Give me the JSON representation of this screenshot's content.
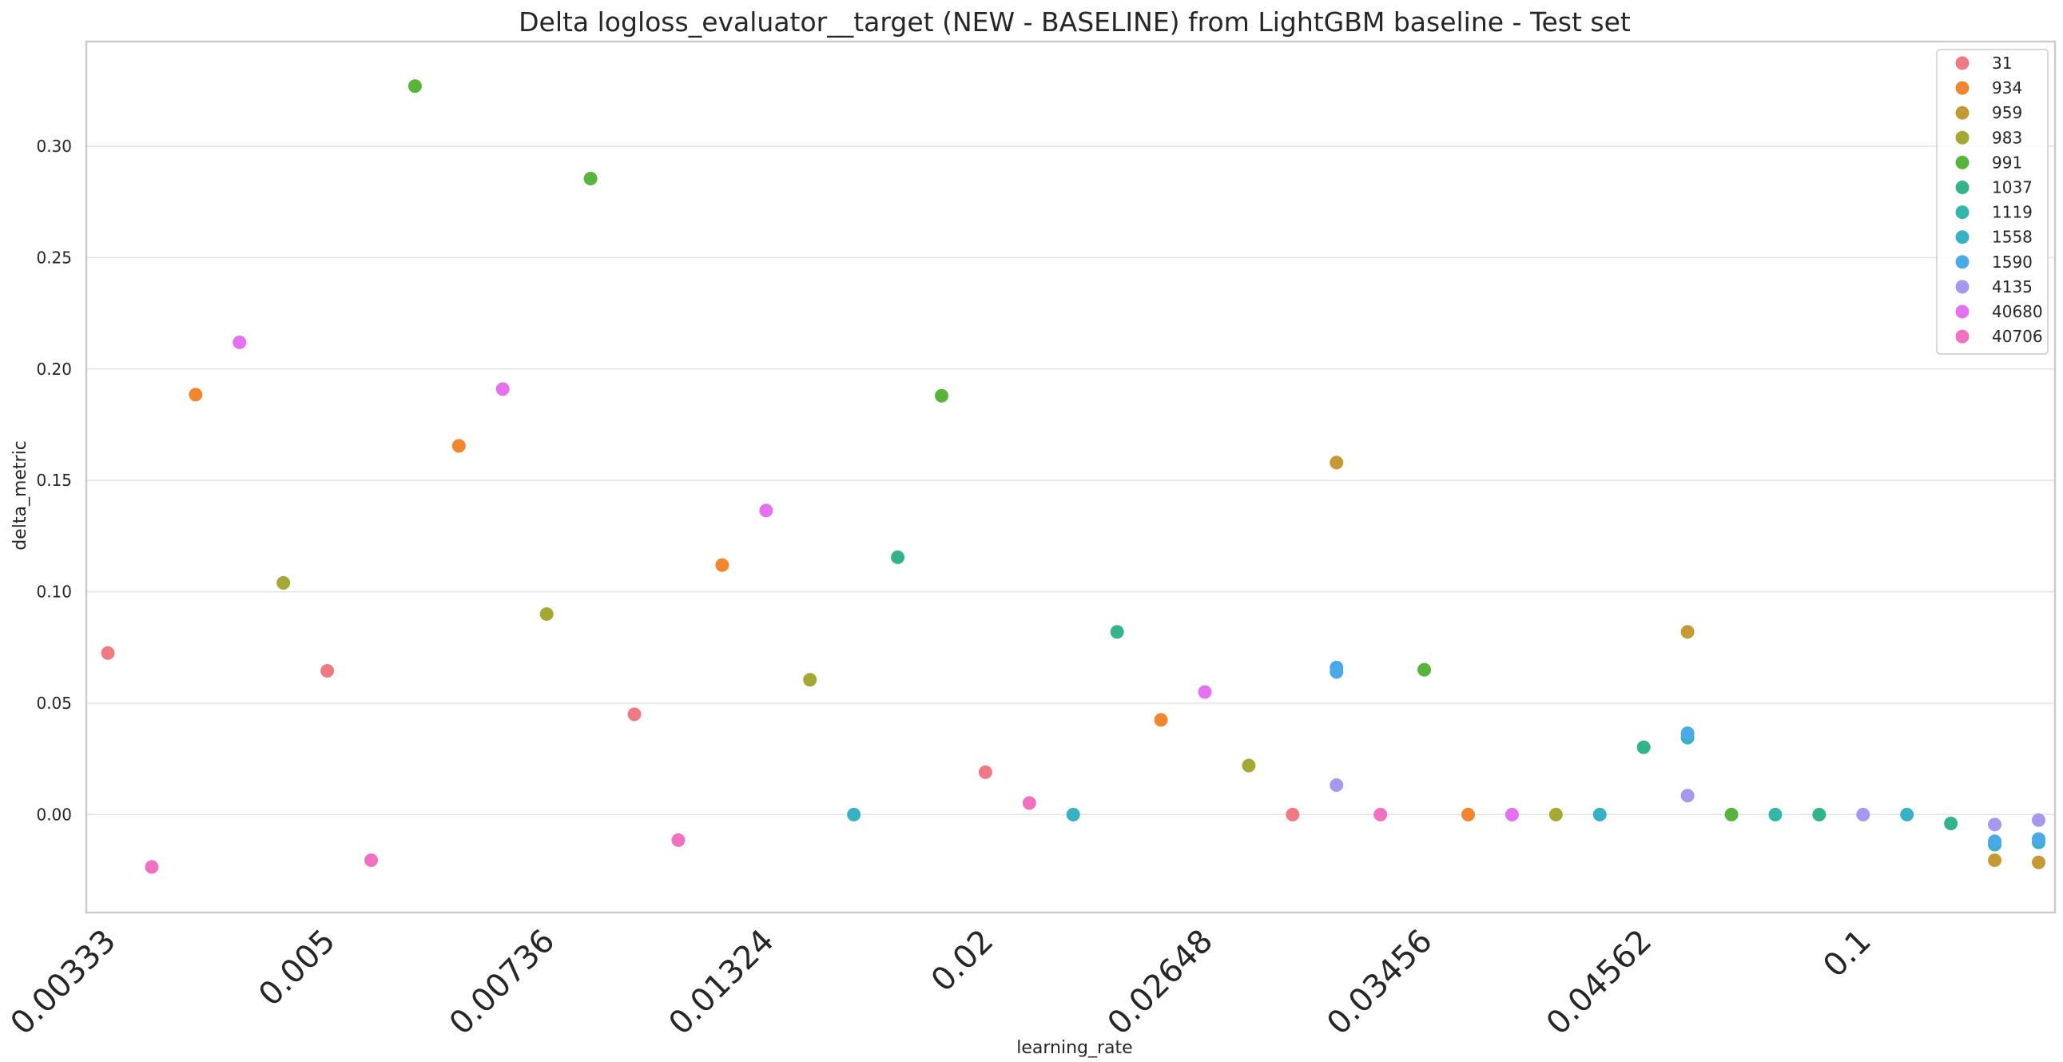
{
  "chart_data": {
    "type": "scatter",
    "title": "Delta logloss_evaluator__target (NEW - BASELINE) from LightGBM baseline - Test set",
    "xlabel": "learning_rate",
    "ylabel": "delta_metric",
    "x_axis_scale": "categorical",
    "x_tick_labels": [
      "0.00333",
      "0.005",
      "0.00736",
      "0.01324",
      "0.02",
      "0.02648",
      "0.03456",
      "0.04562",
      "0.1"
    ],
    "ylim": [
      -0.044,
      0.347
    ],
    "yticks": [
      0.0,
      0.05,
      0.1,
      0.15,
      0.2,
      0.25,
      0.3
    ],
    "ytick_labels": [
      "0.00",
      "0.05",
      "0.10",
      "0.15",
      "0.20",
      "0.25",
      "0.30"
    ],
    "grid": "horizontal",
    "legend_position": "top-right",
    "series": [
      {
        "name": "31",
        "color": "#f07a83",
        "points": [
          {
            "x": 0,
            "y": 0.0725
          },
          {
            "x": 5,
            "y": 0.0645
          },
          {
            "x": 12,
            "y": 0.045
          },
          {
            "x": 20,
            "y": 0.019
          },
          {
            "x": 27,
            "y": 0.0
          }
        ]
      },
      {
        "name": "934",
        "color": "#f0872e",
        "points": [
          {
            "x": 2,
            "y": 0.1885
          },
          {
            "x": 8,
            "y": 0.1655
          },
          {
            "x": 14,
            "y": 0.112
          },
          {
            "x": 24,
            "y": 0.0425
          },
          {
            "x": 31,
            "y": 0.0
          }
        ]
      },
      {
        "name": "959",
        "color": "#c49a34",
        "points": [
          {
            "x": 28,
            "y": 0.158
          },
          {
            "x": 36,
            "y": 0.082
          },
          {
            "x": 43,
            "y": -0.0205
          },
          {
            "x": 44,
            "y": -0.0215
          }
        ]
      },
      {
        "name": "983",
        "color": "#a3a932",
        "points": [
          {
            "x": 4,
            "y": 0.104
          },
          {
            "x": 10,
            "y": 0.09
          },
          {
            "x": 16,
            "y": 0.0605
          },
          {
            "x": 26,
            "y": 0.022
          },
          {
            "x": 33,
            "y": 0.0
          }
        ]
      },
      {
        "name": "991",
        "color": "#57b53a",
        "points": [
          {
            "x": 7,
            "y": 0.327
          },
          {
            "x": 11,
            "y": 0.2855
          },
          {
            "x": 19,
            "y": 0.188
          },
          {
            "x": 30,
            "y": 0.065
          },
          {
            "x": 37,
            "y": 0.0
          }
        ]
      },
      {
        "name": "1037",
        "color": "#33b38a",
        "points": [
          {
            "x": 18,
            "y": 0.1155
          },
          {
            "x": 23,
            "y": 0.082
          },
          {
            "x": 35,
            "y": 0.0302
          },
          {
            "x": 39,
            "y": 0.0
          },
          {
            "x": 42,
            "y": -0.004
          }
        ]
      },
      {
        "name": "1119",
        "color": "#34b6a8",
        "points": [
          {
            "x": 38,
            "y": 0.0
          }
        ]
      },
      {
        "name": "1558",
        "color": "#37b2c5",
        "points": [
          {
            "x": 17,
            "y": 0.0
          },
          {
            "x": 22,
            "y": 0.0
          },
          {
            "x": 34,
            "y": 0.0
          },
          {
            "x": 36,
            "y": 0.0345
          },
          {
            "x": 41,
            "y": 0.0
          },
          {
            "x": 43,
            "y": -0.0135
          },
          {
            "x": 44,
            "y": -0.0125
          }
        ]
      },
      {
        "name": "1590",
        "color": "#4aa9e8",
        "points": [
          {
            "x": 28,
            "y": 0.066
          },
          {
            "x": 28,
            "y": 0.064
          },
          {
            "x": 36,
            "y": 0.0365
          },
          {
            "x": 43,
            "y": -0.012
          },
          {
            "x": 44,
            "y": -0.011
          }
        ]
      },
      {
        "name": "4135",
        "color": "#a897ee",
        "points": [
          {
            "x": 28,
            "y": 0.0132
          },
          {
            "x": 36,
            "y": 0.0085
          },
          {
            "x": 40,
            "y": 0.0
          },
          {
            "x": 43,
            "y": -0.0045
          },
          {
            "x": 44,
            "y": -0.0025
          }
        ]
      },
      {
        "name": "40680",
        "color": "#e571f0",
        "points": [
          {
            "x": 3,
            "y": 0.212
          },
          {
            "x": 9,
            "y": 0.191
          },
          {
            "x": 15,
            "y": 0.1365
          },
          {
            "x": 25,
            "y": 0.055
          },
          {
            "x": 32,
            "y": 0.0
          }
        ]
      },
      {
        "name": "40706",
        "color": "#f270c0",
        "points": [
          {
            "x": 1,
            "y": -0.0235
          },
          {
            "x": 6,
            "y": -0.0205
          },
          {
            "x": 13,
            "y": -0.0115
          },
          {
            "x": 21,
            "y": 0.0052
          },
          {
            "x": 29,
            "y": 0.0
          }
        ]
      }
    ]
  }
}
